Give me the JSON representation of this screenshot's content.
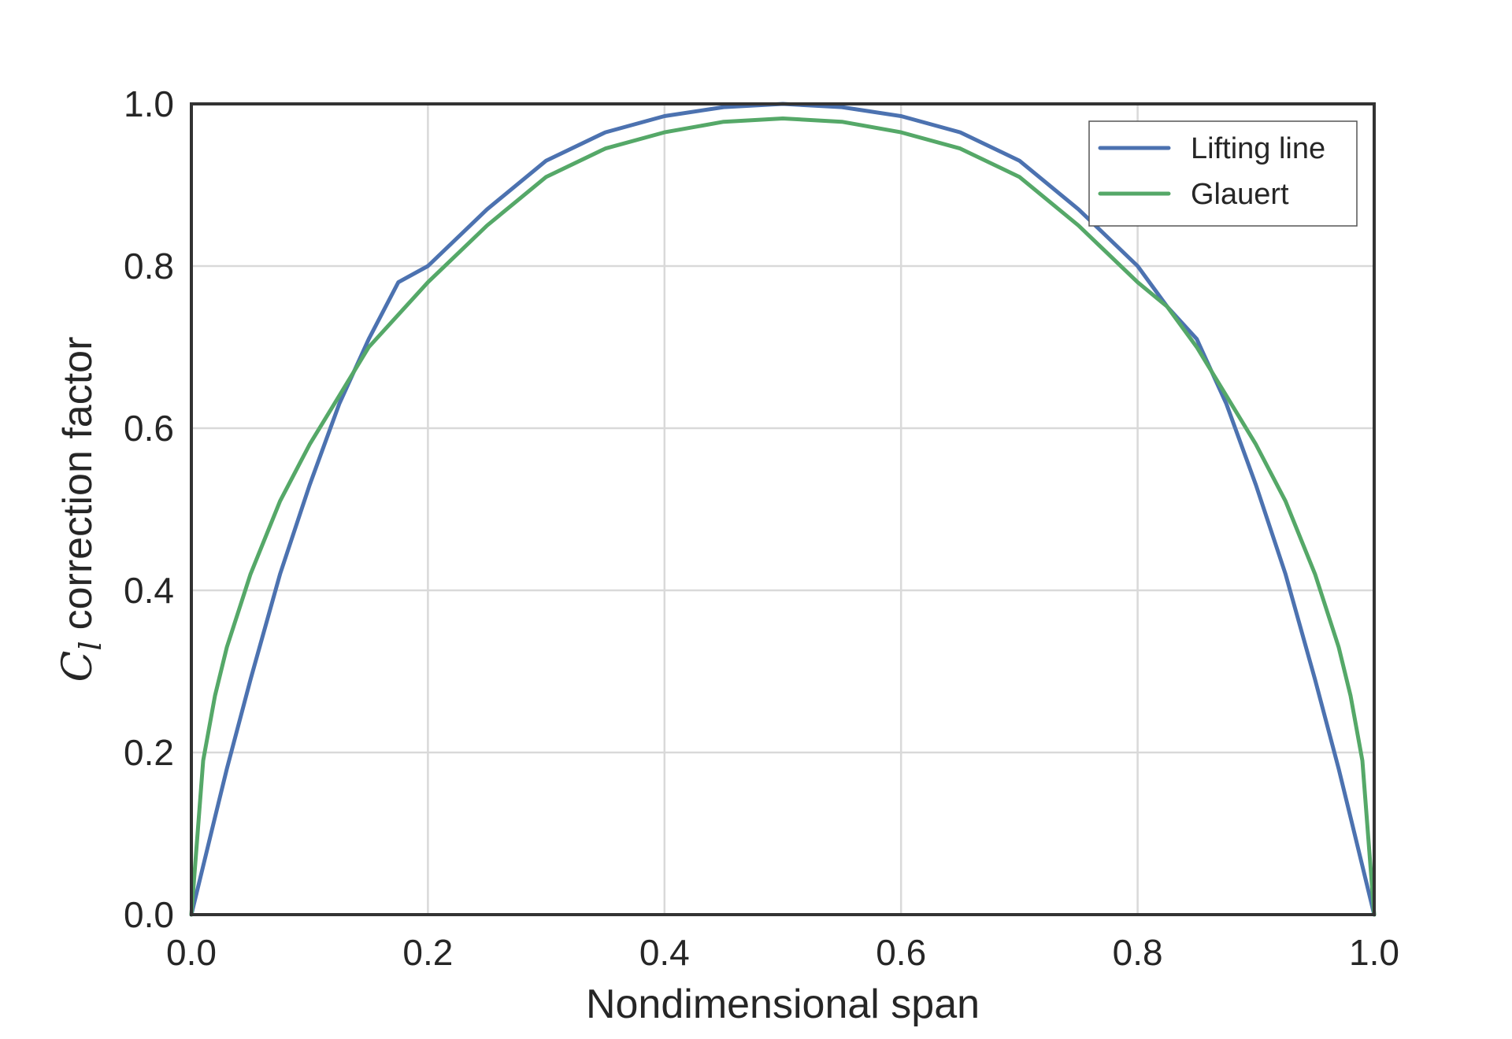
{
  "chart_data": {
    "type": "line",
    "title": "",
    "xlabel": "Nondimensional span",
    "ylabel": {
      "symbol": "C",
      "subscript": "l",
      "text": "correction factor"
    },
    "xlim": [
      0.0,
      1.0
    ],
    "ylim": [
      0.0,
      1.0
    ],
    "xticks": [
      "0.0",
      "0.2",
      "0.4",
      "0.6",
      "0.8",
      "1.0"
    ],
    "yticks": [
      "0.0",
      "0.2",
      "0.4",
      "0.6",
      "0.8",
      "1.0"
    ],
    "grid": true,
    "legend_position": "top-right",
    "x": [
      0.0,
      0.01,
      0.02,
      0.03,
      0.05,
      0.075,
      0.1,
      0.125,
      0.15,
      0.175,
      0.2,
      0.25,
      0.3,
      0.35,
      0.4,
      0.45,
      0.5,
      0.55,
      0.6,
      0.65,
      0.7,
      0.75,
      0.8,
      0.825,
      0.85,
      0.875,
      0.9,
      0.925,
      0.95,
      0.97,
      0.98,
      0.99,
      1.0
    ],
    "series": [
      {
        "name": "Lifting line",
        "color": "#4c72b0",
        "values": [
          0.0,
          0.06,
          0.12,
          0.18,
          0.29,
          0.42,
          0.53,
          0.63,
          0.71,
          0.78,
          0.8,
          0.87,
          0.93,
          0.965,
          0.985,
          0.996,
          1.0,
          0.996,
          0.985,
          0.965,
          0.93,
          0.87,
          0.8,
          0.75,
          0.71,
          0.63,
          0.53,
          0.42,
          0.29,
          0.18,
          0.12,
          0.06,
          0.0
        ]
      },
      {
        "name": "Glauert",
        "color": "#55a868",
        "values": [
          0.0,
          0.19,
          0.27,
          0.33,
          0.42,
          0.51,
          0.58,
          0.64,
          0.7,
          0.74,
          0.78,
          0.85,
          0.91,
          0.945,
          0.965,
          0.978,
          0.982,
          0.978,
          0.965,
          0.945,
          0.91,
          0.85,
          0.78,
          0.75,
          0.7,
          0.64,
          0.58,
          0.51,
          0.42,
          0.33,
          0.27,
          0.19,
          0.0
        ]
      }
    ]
  }
}
